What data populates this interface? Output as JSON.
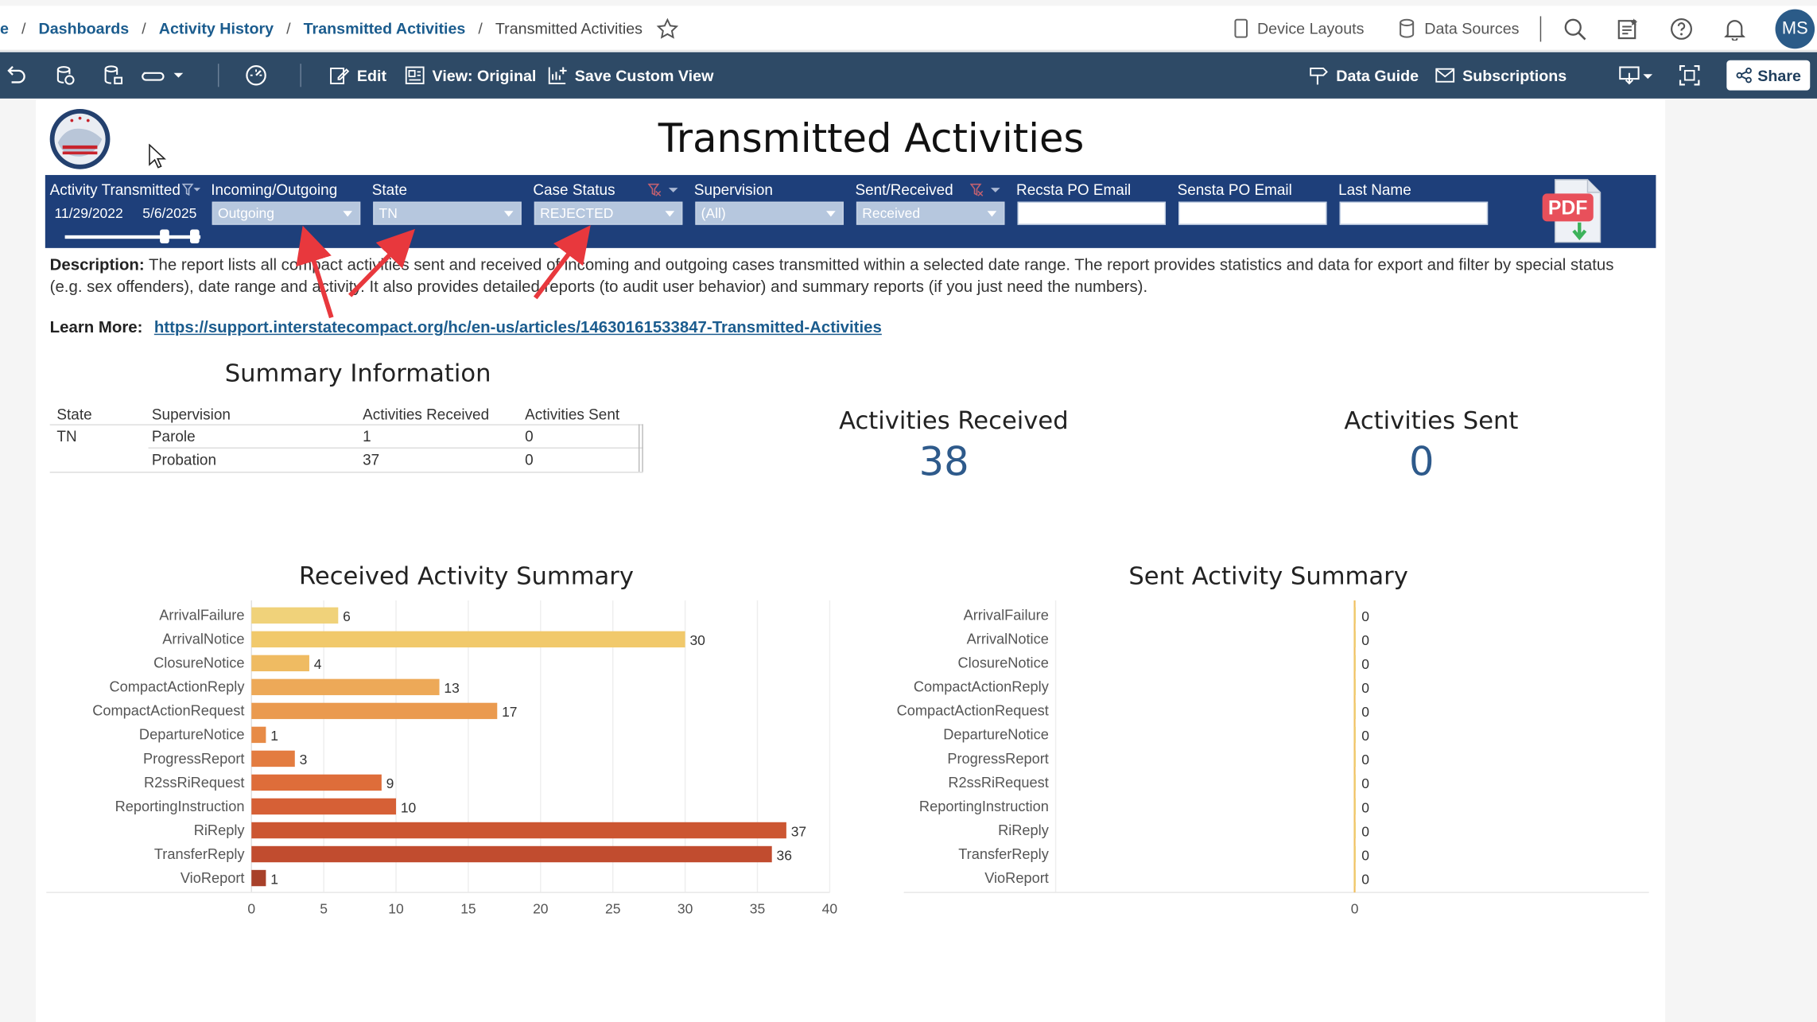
{
  "breadcrumb": {
    "lead": "e",
    "items": [
      "Dashboards",
      "Activity History",
      "Transmitted Activities"
    ],
    "current": "Transmitted Activities"
  },
  "top_right": {
    "device_layouts": "Device Layouts",
    "data_sources": "Data Sources",
    "avatar_initials": "MS"
  },
  "toolbar": {
    "edit": "Edit",
    "view": "View: Original",
    "save_view": "Save Custom View",
    "data_guide": "Data Guide",
    "subscriptions": "Subscriptions",
    "share": "Share"
  },
  "dashboard": {
    "title": "Transmitted Activities",
    "filters": {
      "activity_transmitted": {
        "label": "Activity Transmitted",
        "start": "11/29/2022",
        "end": "5/6/2025"
      },
      "incoming_outgoing": {
        "label": "Incoming/Outgoing",
        "value": "Outgoing"
      },
      "state": {
        "label": "State",
        "value": "TN"
      },
      "case_status": {
        "label": "Case Status",
        "value": "REJECTED"
      },
      "supervision": {
        "label": "Supervision",
        "value": "(All)"
      },
      "sent_received": {
        "label": "Sent/Received",
        "value": "Received"
      },
      "recsta_po_email": {
        "label": "Recsta PO Email",
        "value": ""
      },
      "sensta_po_email": {
        "label": "Sensta PO Email",
        "value": ""
      },
      "last_name": {
        "label": "Last Name",
        "value": ""
      }
    },
    "pdf_label": "PDF",
    "description_label": "Description:",
    "description_text": "The report lists all compact activities sent and received of incoming and outgoing cases transmitted within a selected date range.  The report provides statistics and data for export and filter by special status (e.g. sex offenders), date range and activity.  It also provides detailed reports (to audit user behavior) and summary reports (if you just need the numbers).",
    "learn_more_label": "Learn More:",
    "learn_more_link": "https://support.interstatecompact.org/hc/en-us/articles/14630161533847-Transmitted-Activities",
    "summary": {
      "title": "Summary Information",
      "headers": [
        "State",
        "Supervision",
        "Activities Received",
        "Activities Sent"
      ],
      "rows": [
        [
          "TN",
          "Parole",
          "1",
          "0"
        ],
        [
          "",
          "Probation",
          "37",
          "0"
        ]
      ]
    },
    "kpis": {
      "received_label": "Activities Received",
      "received_value": "38",
      "sent_label": "Activities Sent",
      "sent_value": "0"
    }
  },
  "chart_data": [
    {
      "type": "bar",
      "orientation": "horizontal",
      "title": "Received Activity Summary",
      "categories": [
        "ArrivalFailure",
        "ArrivalNotice",
        "ClosureNotice",
        "CompactActionReply",
        "CompactActionRequest",
        "DepartureNotice",
        "ProgressReport",
        "R2ssRiRequest",
        "ReportingInstruction",
        "RiReply",
        "TransferReply",
        "VioReport"
      ],
      "values": [
        6,
        30,
        4,
        13,
        17,
        1,
        3,
        9,
        10,
        37,
        36,
        1
      ],
      "xlim": [
        0,
        40
      ],
      "xticks": [
        0,
        5,
        10,
        15,
        20,
        25,
        30,
        35,
        40
      ],
      "colors": [
        "#f0d27a",
        "#f1c96b",
        "#efbb62",
        "#eda958",
        "#ea9a4f",
        "#e78b47",
        "#e37c40",
        "#de6d3a",
        "#d66036",
        "#cc5632",
        "#c14c2f",
        "#a8412a"
      ],
      "data_labels": true
    },
    {
      "type": "bar",
      "orientation": "horizontal",
      "title": "Sent Activity Summary",
      "categories": [
        "ArrivalFailure",
        "ArrivalNotice",
        "ClosureNotice",
        "CompactActionReply",
        "CompactActionRequest",
        "DepartureNotice",
        "ProgressReport",
        "R2ssRiRequest",
        "ReportingInstruction",
        "RiReply",
        "TransferReply",
        "VioReport"
      ],
      "values": [
        0,
        0,
        0,
        0,
        0,
        0,
        0,
        0,
        0,
        0,
        0,
        0
      ],
      "xticks": [
        0
      ],
      "colors": [
        "#f0d27a"
      ],
      "data_labels": true
    }
  ]
}
